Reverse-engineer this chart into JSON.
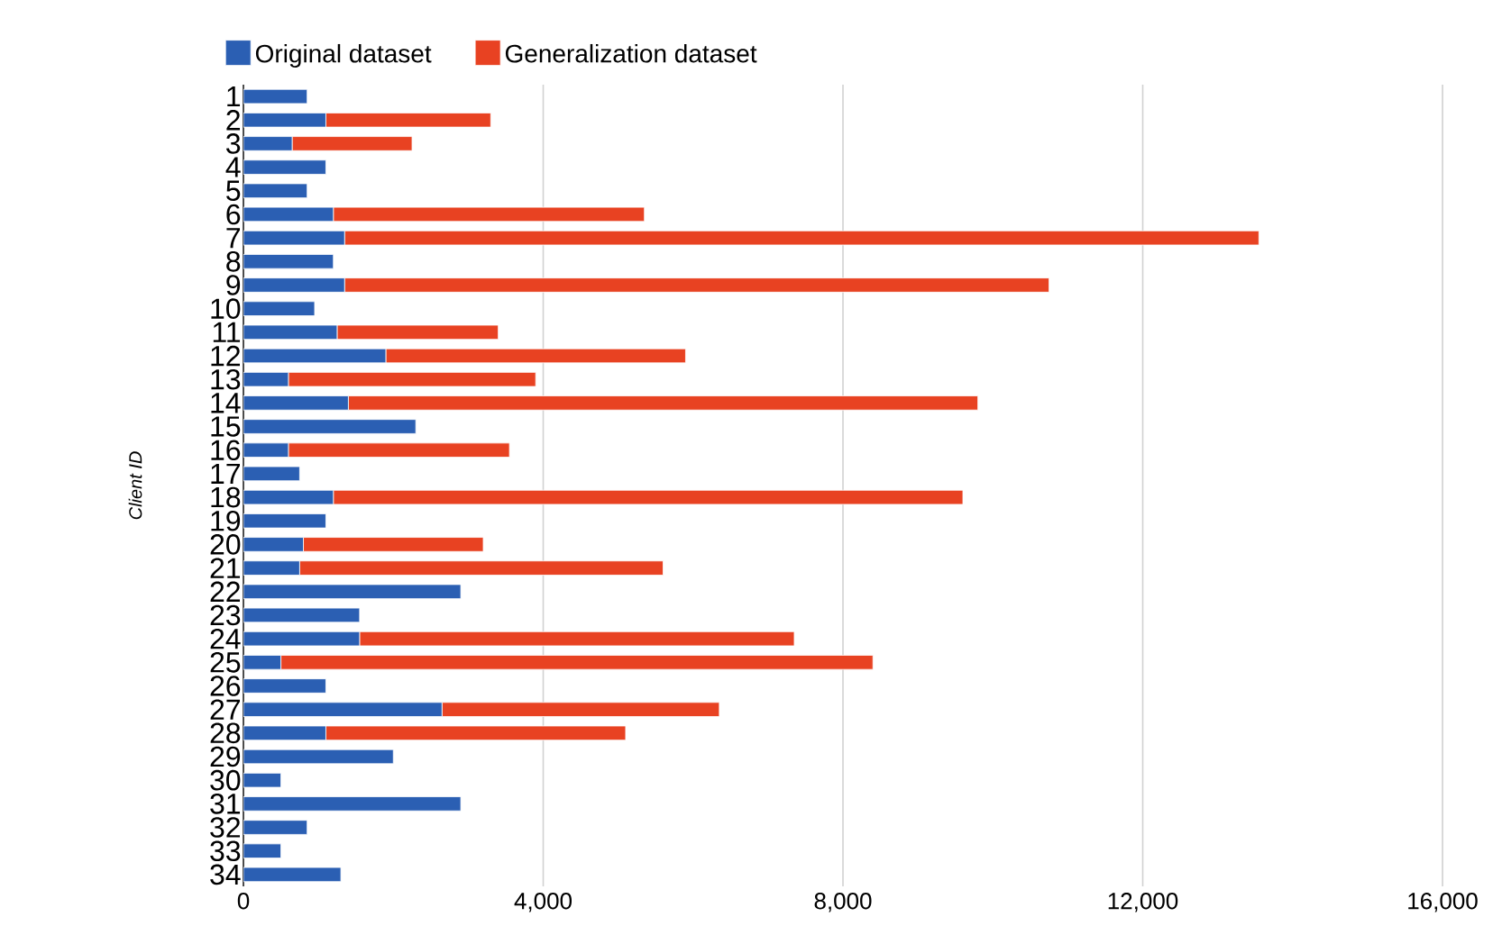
{
  "chart_data": {
    "type": "bar",
    "orientation": "horizontal",
    "stacked": true,
    "ylabel": "Client ID",
    "categories": [
      "1",
      "2",
      "3",
      "4",
      "5",
      "6",
      "7",
      "8",
      "9",
      "10",
      "11",
      "12",
      "13",
      "14",
      "15",
      "16",
      "17",
      "18",
      "19",
      "20",
      "21",
      "22",
      "23",
      "24",
      "25",
      "26",
      "27",
      "28",
      "29",
      "30",
      "31",
      "32",
      "33",
      "34"
    ],
    "series": [
      {
        "name": "Original dataset",
        "color": "#2b5fb3",
        "values": [
          850,
          1100,
          650,
          1100,
          850,
          1200,
          1350,
          1200,
          1350,
          950,
          1250,
          1900,
          600,
          1400,
          2300,
          600,
          750,
          1200,
          1100,
          800,
          750,
          2900,
          1550,
          1550,
          500,
          1100,
          2650,
          1100,
          2000,
          500,
          2900,
          850,
          500,
          1300
        ]
      },
      {
        "name": "Generalization dataset",
        "color": "#e84222",
        "values": [
          null,
          2200,
          1600,
          null,
          null,
          4150,
          12200,
          null,
          9400,
          null,
          2150,
          4000,
          3300,
          8400,
          null,
          2950,
          null,
          8400,
          null,
          2400,
          4850,
          null,
          null,
          5800,
          7900,
          null,
          3700,
          4000,
          null,
          null,
          null,
          null,
          null,
          null
        ]
      }
    ],
    "xlim": [
      0,
      16000
    ],
    "xticks": [
      0,
      {
        "value": 4000,
        "label": "4,000"
      },
      {
        "value": 8000,
        "label": "8,000"
      },
      {
        "value": 12000,
        "label": "12,000"
      },
      {
        "value": 16000,
        "label": "16,000"
      }
    ],
    "grid": "x",
    "legend": "top"
  }
}
